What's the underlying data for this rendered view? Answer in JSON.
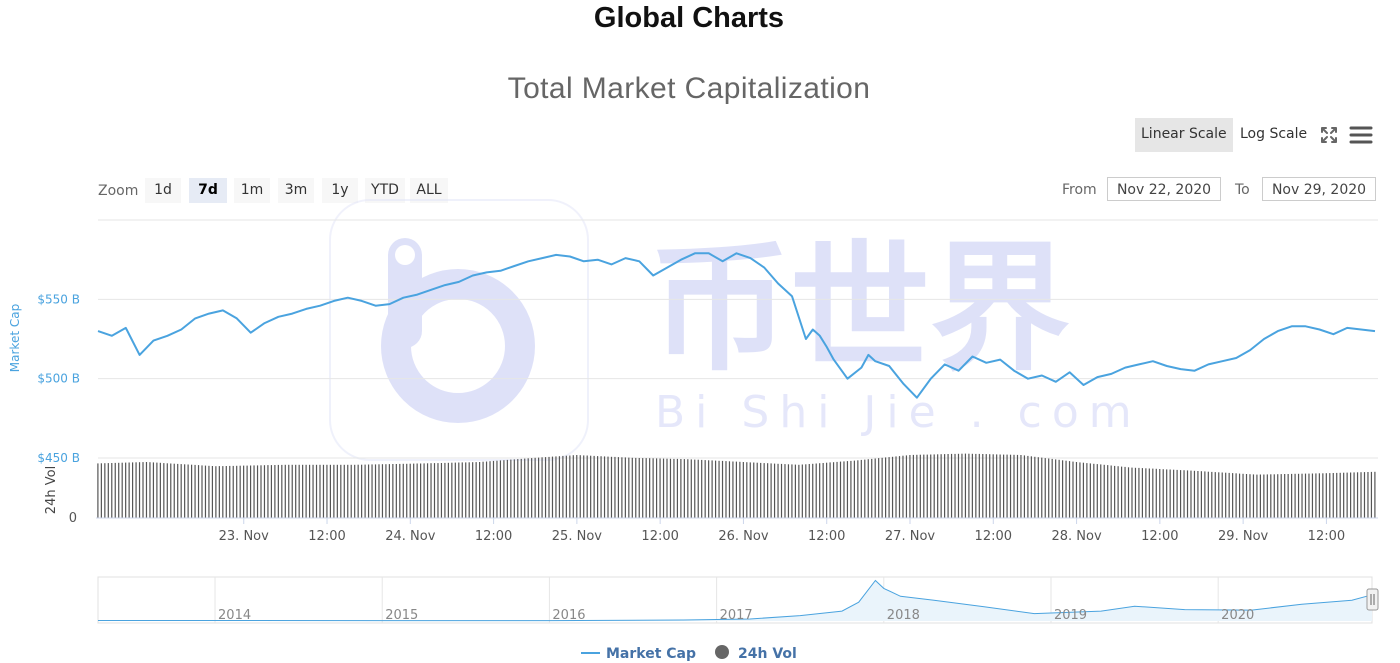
{
  "page": {
    "title": "Global Charts"
  },
  "toolbar": {
    "linear_label": "Linear Scale",
    "log_label": "Log Scale",
    "fullscreen_icon": "fullscreen-icon",
    "menu_icon": "hamburger-menu-icon"
  },
  "zoom": {
    "label": "Zoom",
    "buttons": [
      "1d",
      "7d",
      "1m",
      "3m",
      "1y",
      "YTD",
      "ALL"
    ],
    "active": "7d"
  },
  "range": {
    "from_label": "From",
    "from_value": "Nov 22, 2020",
    "to_label": "To",
    "to_value": "Nov 29, 2020"
  },
  "watermark": {
    "cn": "币世界",
    "en": "Bi Shi Jie . com"
  },
  "colors": {
    "line": "#4aa3df",
    "bars": "#555555",
    "grid": "#e6e6e6"
  },
  "chart_data": {
    "type": "line",
    "title": "Total Market Capitalization",
    "ylabel": "Market Cap",
    "ylabel2": "24h Vol",
    "y_ticks": [
      "$450 B",
      "$500 B",
      "$550 B"
    ],
    "y_tick_values": [
      450,
      500,
      550
    ],
    "ylim": [
      450,
      600
    ],
    "vol_tick": "0",
    "x_ticks": [
      "23. Nov",
      "12:00",
      "24. Nov",
      "12:00",
      "25. Nov",
      "12:00",
      "26. Nov",
      "12:00",
      "27. Nov",
      "12:00",
      "28. Nov",
      "12:00",
      "29. Nov",
      "12:00"
    ],
    "x_tick_hours": [
      24,
      36,
      48,
      60,
      72,
      84,
      96,
      108,
      120,
      132,
      144,
      156,
      168,
      180
    ],
    "xlim_hours": [
      3,
      187
    ],
    "series": [
      {
        "name": "Market Cap",
        "x_hours": [
          3,
          5,
          7,
          9,
          11,
          13,
          15,
          17,
          19,
          21,
          23,
          25,
          27,
          29,
          31,
          33,
          35,
          37,
          39,
          41,
          43,
          45,
          47,
          49,
          51,
          53,
          55,
          57,
          59,
          61,
          63,
          65,
          67,
          69,
          71,
          73,
          75,
          77,
          79,
          81,
          83,
          85,
          87,
          89,
          91,
          93,
          95,
          97,
          99,
          101,
          103,
          105,
          106,
          107,
          108,
          109,
          111,
          113,
          114,
          115,
          117,
          119,
          121,
          123,
          125,
          127,
          129,
          131,
          133,
          135,
          137,
          139,
          141,
          143,
          145,
          147,
          149,
          151,
          153,
          155,
          157,
          159,
          161,
          163,
          165,
          167,
          169,
          171,
          173,
          175,
          177,
          179,
          181,
          183,
          185,
          187
        ],
        "values": [
          530,
          527,
          532,
          515,
          524,
          527,
          531,
          538,
          541,
          543,
          538,
          529,
          535,
          539,
          541,
          544,
          546,
          549,
          551,
          549,
          546,
          547,
          551,
          553,
          556,
          559,
          561,
          565,
          567,
          568,
          571,
          574,
          576,
          578,
          577,
          574,
          575,
          572,
          576,
          574,
          565,
          570,
          575,
          579,
          579,
          574,
          579,
          576,
          570,
          560,
          552,
          525,
          531,
          527,
          520,
          512,
          500,
          507,
          515,
          511,
          508,
          497,
          488,
          500,
          509,
          505,
          514,
          510,
          512,
          505,
          500,
          502,
          498,
          504,
          496,
          501,
          503,
          507,
          509,
          511,
          508,
          506,
          505,
          509,
          511,
          513,
          518,
          525,
          530,
          533,
          533,
          531,
          528,
          532,
          531,
          530
        ]
      },
      {
        "name": "24h Vol",
        "x_hours": [
          3,
          10,
          20,
          30,
          40,
          50,
          58,
          66,
          72,
          80,
          88,
          96,
          104,
          112,
          120,
          128,
          136,
          144,
          152,
          160,
          170,
          180,
          187
        ],
        "values": [
          39,
          40,
          37,
          38,
          38,
          39,
          40,
          43,
          45,
          43,
          42,
          40,
          38,
          41,
          45,
          46,
          45,
          40,
          36,
          34,
          31,
          32,
          33
        ],
        "vmax": 50
      }
    ],
    "navigator": {
      "x_ticks": [
        "2014",
        "2015",
        "2016",
        "2017",
        "2018",
        "2019",
        "2020"
      ],
      "x_tick_years": [
        2014,
        2015,
        2016,
        2017,
        2018,
        2019,
        2020
      ],
      "xlim_years": [
        2013.3,
        2020.92
      ],
      "x_years": [
        2013.3,
        2014.0,
        2015.0,
        2016.0,
        2016.8,
        2017.2,
        2017.5,
        2017.75,
        2017.85,
        2017.95,
        2018.0,
        2018.1,
        2018.3,
        2018.6,
        2018.9,
        2019.3,
        2019.5,
        2019.8,
        2020.2,
        2020.5,
        2020.8,
        2020.92
      ],
      "values": [
        10,
        10,
        8,
        9,
        20,
        40,
        110,
        200,
        380,
        820,
        660,
        500,
        420,
        290,
        150,
        200,
        300,
        230,
        220,
        340,
        420,
        530
      ],
      "vmax": 850
    },
    "legend": [
      "Market Cap",
      "24h Vol"
    ]
  }
}
